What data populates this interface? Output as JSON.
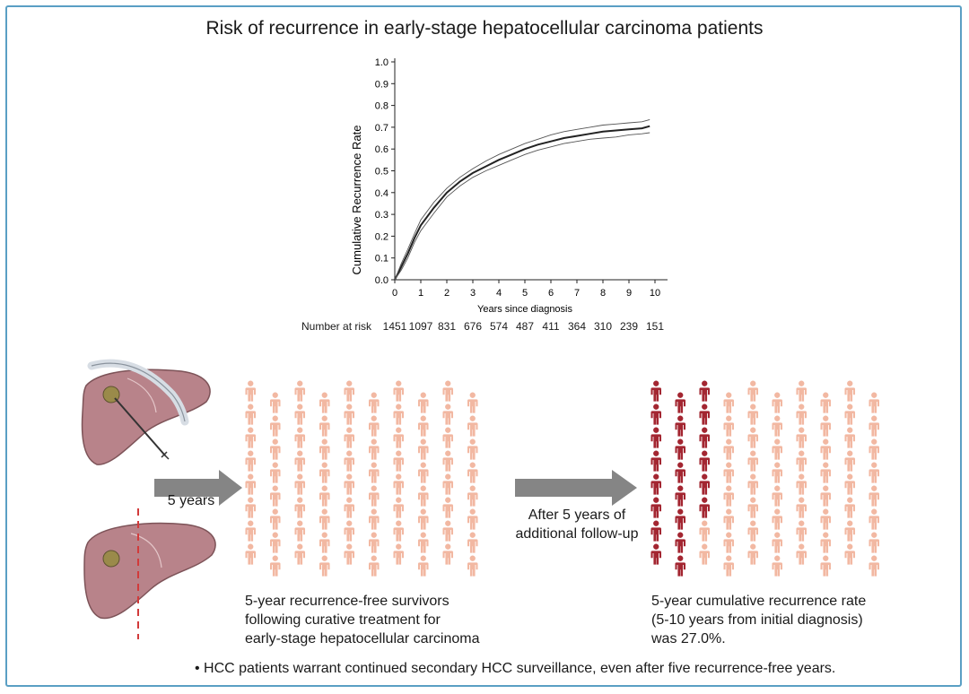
{
  "title": "Risk of recurrence in early-stage hepatocellular carcinoma patients",
  "chart_data": {
    "type": "line",
    "title": "",
    "xlabel": "Years since diagnosis",
    "ylabel": "Cumulative Recurrence Rate",
    "xlim": [
      0,
      10
    ],
    "ylim": [
      0,
      1.0
    ],
    "x_ticks": [
      "0",
      "1",
      "2",
      "3",
      "4",
      "5",
      "6",
      "7",
      "8",
      "9",
      "10"
    ],
    "y_ticks": [
      "0.0",
      "0.1",
      "0.2",
      "0.3",
      "0.4",
      "0.5",
      "0.6",
      "0.7",
      "0.8",
      "0.9",
      "1.0"
    ],
    "grid": false,
    "series": [
      {
        "role": "estimate",
        "x": [
          0,
          0.25,
          0.5,
          0.75,
          1,
          1.5,
          2,
          2.5,
          3,
          3.5,
          4,
          4.5,
          5,
          5.5,
          6,
          6.5,
          7,
          7.5,
          8,
          8.5,
          9,
          9.5,
          9.8
        ],
        "y": [
          0,
          0.06,
          0.12,
          0.19,
          0.25,
          0.33,
          0.4,
          0.45,
          0.49,
          0.52,
          0.55,
          0.575,
          0.6,
          0.62,
          0.635,
          0.65,
          0.66,
          0.67,
          0.68,
          0.685,
          0.69,
          0.695,
          0.705
        ]
      },
      {
        "role": "upper-ci",
        "x": [
          0,
          0.25,
          0.5,
          0.75,
          1,
          1.5,
          2,
          2.5,
          3,
          3.5,
          4,
          4.5,
          5,
          5.5,
          6,
          6.5,
          7,
          7.5,
          8,
          8.5,
          9,
          9.5,
          9.8
        ],
        "y": [
          0,
          0.075,
          0.14,
          0.21,
          0.275,
          0.355,
          0.42,
          0.47,
          0.51,
          0.545,
          0.575,
          0.6,
          0.625,
          0.645,
          0.665,
          0.68,
          0.69,
          0.7,
          0.71,
          0.715,
          0.72,
          0.725,
          0.735
        ]
      },
      {
        "role": "lower-ci",
        "x": [
          0,
          0.25,
          0.5,
          0.75,
          1,
          1.5,
          2,
          2.5,
          3,
          3.5,
          4,
          4.5,
          5,
          5.5,
          6,
          6.5,
          7,
          7.5,
          8,
          8.5,
          9,
          9.5,
          9.8
        ],
        "y": [
          0,
          0.045,
          0.1,
          0.17,
          0.225,
          0.305,
          0.38,
          0.43,
          0.47,
          0.5,
          0.525,
          0.55,
          0.575,
          0.595,
          0.61,
          0.625,
          0.635,
          0.645,
          0.65,
          0.655,
          0.665,
          0.67,
          0.675
        ]
      }
    ],
    "number_at_risk_label": "Number at risk",
    "number_at_risk": [
      "1451",
      "1097",
      "831",
      "676",
      "574",
      "487",
      "411",
      "364",
      "310",
      "239",
      "151"
    ]
  },
  "flow": {
    "arrow1_label": "5 years",
    "arrow2_label_line1": "After 5 years of",
    "arrow2_label_line2": "additional follow-up",
    "left_caption_line1": "5-year recurrence-free survivors",
    "left_caption_line2": "following curative treatment for",
    "left_caption_line3": "early-stage hepatocellular carcinoma",
    "right_caption_line1": "5-year cumulative recurrence rate",
    "right_caption_line2": "(5-10 years from initial diagnosis)",
    "right_caption_line3": "was 27.0%.",
    "grid_rows": 8,
    "grid_cols": 10,
    "recurrence_fraction": 0.27,
    "colors": {
      "survivor": "#f2b8a2",
      "recurrence": "#a32631",
      "arrow": "#858585",
      "liver": "#b8838a",
      "cut_line": "#d23a3a",
      "frame": "#5a9fc4"
    }
  },
  "footer": {
    "bullet": "• HCC patients warrant continued secondary HCC surveillance, even after five recurrence-free years."
  }
}
